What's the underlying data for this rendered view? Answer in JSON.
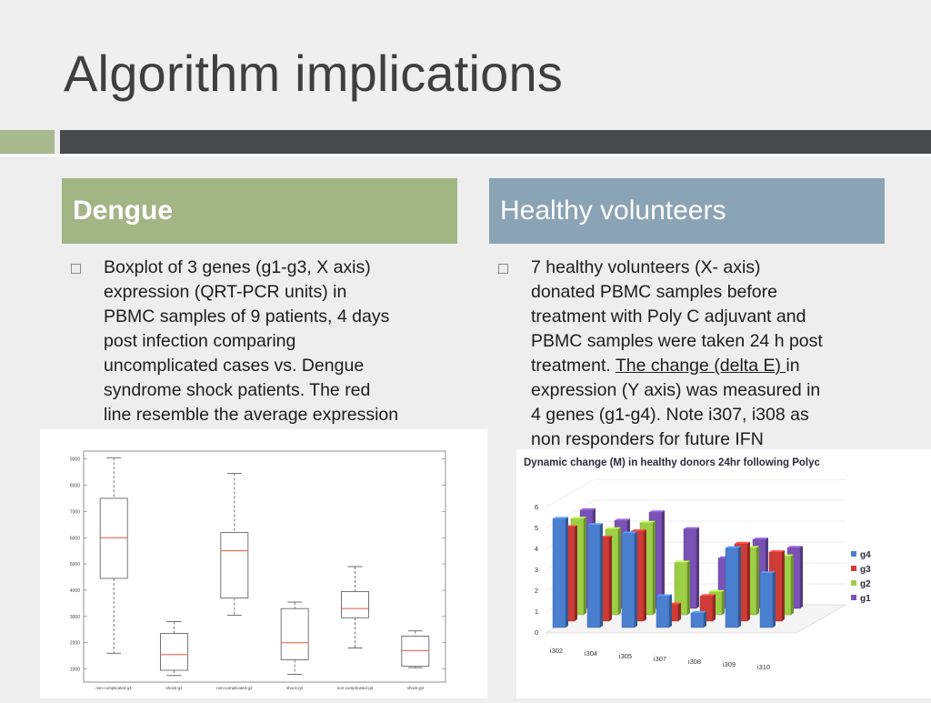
{
  "slide": {
    "title": "Algorithm implications",
    "accent_colors": {
      "green": "#a2b585",
      "blue": "#8aa3b5",
      "dark_band": "#47494b"
    }
  },
  "left": {
    "header": "Dengue",
    "bullet_lines": [
      "Boxplot of 3 genes (g1-g3, X axis)",
      "expression (QRT-PCR units)  in",
      "PBMC samples of 9 patients, 4 days",
      "post infection comparing",
      "uncomplicated cases vs. Dengue",
      "syndrome shock patients. The red",
      "line resemble the average expression"
    ]
  },
  "right": {
    "header": "Healthy volunteers",
    "bullet_lines_before": [
      "7 healthy volunteers (X- axis)",
      "donated PBMC samples before",
      "treatment with Poly C adjuvant and",
      "PBMC samples were taken 24 h post"
    ],
    "line5_pre": "treatment. ",
    "line5_underlined": "The change (delta E) ",
    "line5_post": "in",
    "bullet_lines_after": [
      "expression (Y axis) was measured in",
      "4 genes (g1-g4). Note i307, i308 as",
      "non responders for future IFN"
    ]
  },
  "chart_data": [
    {
      "type": "boxplot",
      "title": "",
      "categories": [
        "non-complicated-g1",
        "shock-g1",
        "non-complicated-g2",
        "shock-g2",
        "non-complicated-g3",
        "shock-g3"
      ],
      "yticks": [
        1000,
        2000,
        3000,
        4000,
        5000,
        6000,
        7000,
        8000,
        9000
      ],
      "ylim": [
        500,
        9300
      ],
      "median_color": "#e8553c",
      "boxes": [
        {
          "min": 1600,
          "q1": 4450,
          "median": 6000,
          "q3": 7500,
          "max": 9050
        },
        {
          "min": 750,
          "q1": 950,
          "median": 1550,
          "q3": 2350,
          "max": 2800
        },
        {
          "min": 3050,
          "q1": 3700,
          "median": 5500,
          "q3": 6200,
          "max": 8450
        },
        {
          "min": 800,
          "q1": 1350,
          "median": 2000,
          "q3": 3300,
          "max": 3550
        },
        {
          "min": 1800,
          "q1": 2950,
          "median": 3300,
          "q3": 3950,
          "max": 4900
        },
        {
          "min": 1050,
          "q1": 1100,
          "median": 1700,
          "q3": 2250,
          "max": 2450
        }
      ]
    },
    {
      "type": "bar3d",
      "title": "Dynamic change (M) in healthy donors 24hr following Polyc",
      "categories": [
        "i302",
        "i304",
        "i305",
        "i307",
        "i308",
        "i309",
        "i310"
      ],
      "yticks": [
        0,
        1,
        2,
        3,
        4,
        5,
        6
      ],
      "ylim": [
        0,
        6
      ],
      "series": [
        {
          "name": "g4",
          "color": "#4a7fd0",
          "values": [
            5.2,
            4.9,
            4.5,
            1.5,
            0.7,
            3.8,
            2.6
          ]
        },
        {
          "name": "g3",
          "color": "#cf3b35",
          "values": [
            4.5,
            4.0,
            4.3,
            0.8,
            1.2,
            3.7,
            3.3
          ]
        },
        {
          "name": "g2",
          "color": "#9ccf45",
          "values": [
            4.6,
            4.1,
            4.4,
            2.5,
            1.1,
            3.2,
            2.8
          ]
        },
        {
          "name": "g1",
          "color": "#7a52b5",
          "values": [
            4.7,
            4.2,
            4.6,
            3.8,
            2.4,
            3.3,
            2.9
          ]
        }
      ]
    }
  ]
}
